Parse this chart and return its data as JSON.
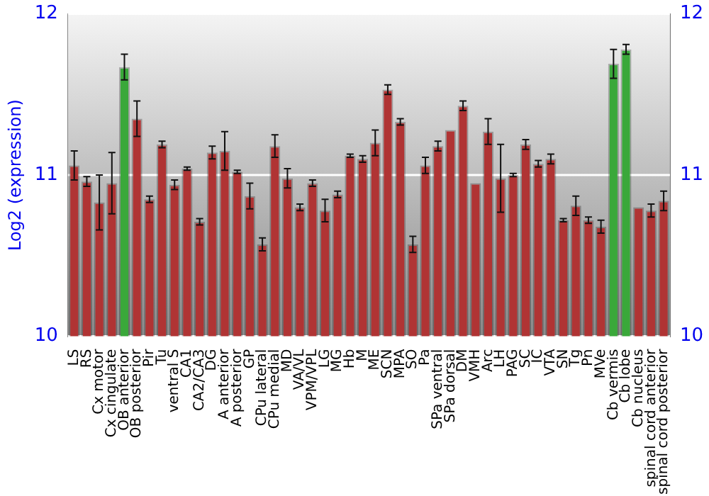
{
  "chart_data": {
    "type": "bar",
    "ylabel": "Log2 (expression)",
    "categories": [
      "LS",
      "RS",
      "Cx motor",
      "Cx cingulate",
      "OB anterior",
      "OB posterior",
      "Pir",
      "Tu",
      "ventral S",
      "CA1",
      "CA2/CA3",
      "DG",
      "A anterior",
      "A posterior",
      "GP",
      "CPu lateral",
      "CPu medial",
      "MD",
      "VA/VL",
      "VPM/VPL",
      "LG",
      "MG",
      "Hb",
      "M",
      "ME",
      "SCN",
      "MPA",
      "SO",
      "Pa",
      "SPa ventral",
      "SPa dorsal",
      "DM",
      "VMH",
      "Arc",
      "LH",
      "PAG",
      "SC",
      "IC",
      "VTA",
      "SN",
      "Tg",
      "Pn",
      "MVe",
      "Cb vermis",
      "Cb lobe",
      "Cb nucleus",
      "spinal cord anterior",
      "spinal cord posterior"
    ],
    "values": [
      11.06,
      10.96,
      10.83,
      10.95,
      11.67,
      11.35,
      10.85,
      11.19,
      10.94,
      11.04,
      10.71,
      11.14,
      11.15,
      11.02,
      10.87,
      10.57,
      11.18,
      10.98,
      10.8,
      10.95,
      10.78,
      10.88,
      11.12,
      11.1,
      11.2,
      11.53,
      11.33,
      10.57,
      11.06,
      11.18,
      11.28,
      11.43,
      10.95,
      11.27,
      10.98,
      11.0,
      11.19,
      11.07,
      11.1,
      10.72,
      10.81,
      10.72,
      10.68,
      11.69,
      11.78,
      10.8,
      10.78,
      10.84
    ],
    "errors": [
      0.09,
      0.03,
      0.17,
      0.19,
      0.08,
      0.11,
      0.02,
      0.02,
      0.03,
      0.01,
      0.02,
      0.04,
      0.12,
      0.01,
      0.08,
      0.04,
      0.07,
      0.06,
      0.02,
      0.02,
      0.07,
      0.02,
      0.01,
      0.02,
      0.08,
      0.03,
      0.02,
      0.05,
      0.05,
      0.03,
      null,
      0.03,
      null,
      0.08,
      0.21,
      0.01,
      0.03,
      0.02,
      0.03,
      0.01,
      0.06,
      0.02,
      0.04,
      0.09,
      0.03,
      null,
      0.04,
      0.06
    ],
    "colors": [
      "#b03434",
      "#b03434",
      "#b03434",
      "#b03434",
      "#3aa83a",
      "#b03434",
      "#b03434",
      "#b03434",
      "#b03434",
      "#b03434",
      "#b03434",
      "#b03434",
      "#b03434",
      "#b03434",
      "#b03434",
      "#b03434",
      "#b03434",
      "#b03434",
      "#b03434",
      "#b03434",
      "#b03434",
      "#b03434",
      "#b03434",
      "#b03434",
      "#b03434",
      "#b03434",
      "#b03434",
      "#b03434",
      "#b03434",
      "#b03434",
      "#b03434",
      "#b03434",
      "#b03434",
      "#b03434",
      "#b03434",
      "#b03434",
      "#b03434",
      "#b03434",
      "#b03434",
      "#b03434",
      "#b03434",
      "#b03434",
      "#b03434",
      "#3aa83a",
      "#3aa83a",
      "#b03434",
      "#b03434",
      "#b03434"
    ],
    "ylim": [
      10,
      12
    ],
    "yticks": [
      10,
      11,
      12
    ],
    "y2lim": [
      10,
      12
    ],
    "y2ticks": [
      10,
      11,
      12
    ],
    "grid": "y",
    "legend": false
  }
}
